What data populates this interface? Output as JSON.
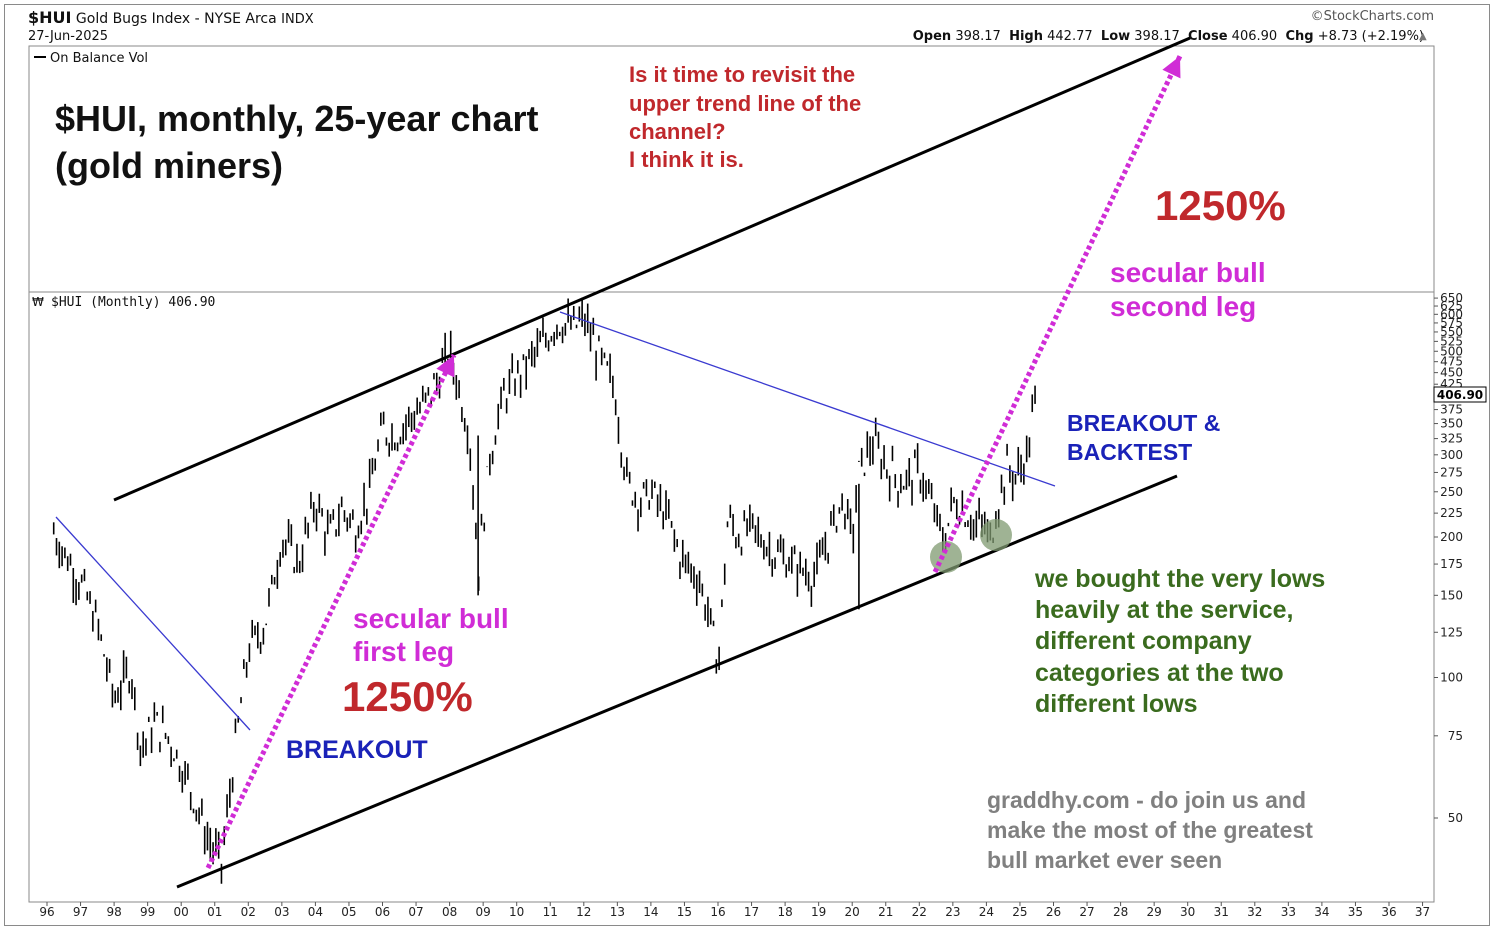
{
  "header": {
    "symbol": "$HUI",
    "name": "Gold Bugs Index - NYSE Arca",
    "exchange": "INDX",
    "date": "27-Jun-2025",
    "source": "©StockCharts.com",
    "quote": {
      "open_label": "Open",
      "open": "398.17",
      "high_label": "High",
      "high": "442.77",
      "low_label": "Low",
      "low": "398.17",
      "close_label": "Close",
      "close": "406.90",
      "chg_label": "Chg",
      "chg": "+8.73 (+2.19%)"
    }
  },
  "upper_panel": {
    "legend": "On Balance Vol"
  },
  "price_panel": {
    "legend": "$HUI (Monthly) 406.90",
    "last_price_tag": "406.90"
  },
  "annotations": {
    "title_line1": "$HUI, monthly, 25-year chart",
    "title_line2": "(gold miners)",
    "question_lines": [
      "Is it time to revisit the",
      "upper trend line of the",
      "channel?",
      "I think it is."
    ],
    "pct_top": "1250%",
    "second_leg_line1": "secular bull",
    "second_leg_line2": "second leg",
    "breakout_backtest_line1": "BREAKOUT &",
    "breakout_backtest_line2": "BACKTEST",
    "first_leg_line1": "secular bull",
    "first_leg_line2": "first leg",
    "pct_bottom": "1250%",
    "breakout": "BREAKOUT",
    "lows_lines": [
      "we bought the very lows",
      "heavily at the service,",
      "different company",
      "categories at the two",
      "different lows"
    ],
    "promo_lines": [
      "graddhy.com - do join us and",
      "make the most of the greatest",
      "bull market ever seen"
    ]
  },
  "colors": {
    "price_bars": "#000000",
    "channel_lines": "#000000",
    "downtrend_lines": "#3a3ad0",
    "magenta": "#d02cd6",
    "red_text": "#c0282c",
    "blue_text": "#1a22b8",
    "green_text": "#3a6b1e",
    "gray_text": "#808080",
    "low_circles": "#7f9a70"
  },
  "chart_data": {
    "type": "bar",
    "title": "$HUI Gold Bugs Index - NYSE Arca (Monthly)",
    "y_scale": "log",
    "y_ticks": [
      50,
      75,
      100,
      125,
      150,
      175,
      200,
      225,
      250,
      275,
      300,
      325,
      350,
      375,
      400,
      425,
      450,
      475,
      500,
      525,
      550,
      575,
      600,
      625,
      650
    ],
    "y_tick_labels": [
      "50",
      "75",
      "100",
      "125",
      "150",
      "175",
      "200",
      "225",
      "250",
      "275",
      "300",
      "325",
      "350",
      "375",
      "",
      "425",
      "450",
      "475",
      "500",
      "525",
      "550",
      "575",
      "600",
      "625",
      "650"
    ],
    "x_tick_labels": [
      "96",
      "97",
      "98",
      "99",
      "00",
      "01",
      "02",
      "03",
      "04",
      "05",
      "06",
      "07",
      "08",
      "09",
      "10",
      "11",
      "12",
      "13",
      "14",
      "15",
      "16",
      "17",
      "18",
      "19",
      "20",
      "21",
      "22",
      "23",
      "24",
      "25",
      "26",
      "27",
      "28",
      "29",
      "30",
      "31",
      "32",
      "33",
      "34",
      "35",
      "36",
      "37"
    ],
    "series": [
      {
        "name": "$HUI (Monthly)",
        "x": [
          1996.2,
          1996.6,
          1997.0,
          1997.5,
          1998.0,
          1998.5,
          1998.8,
          1999.2,
          1999.6,
          2000.0,
          2000.4,
          2000.8,
          2001.2,
          2001.6,
          2002.0,
          2002.5,
          2003.0,
          2003.5,
          2004.0,
          2004.4,
          2004.8,
          2005.2,
          2005.6,
          2006.0,
          2006.4,
          2006.8,
          2007.2,
          2007.6,
          2008.0,
          2008.3,
          2008.6,
          2008.85,
          2009.2,
          2009.6,
          2010.0,
          2010.4,
          2010.8,
          2011.2,
          2011.7,
          2012.0,
          2012.5,
          2012.9,
          2013.3,
          2013.7,
          2014.0,
          2014.5,
          2014.9,
          2015.4,
          2015.8,
          2016.0,
          2016.3,
          2016.6,
          2017.0,
          2017.5,
          2018.0,
          2018.5,
          2018.9,
          2019.3,
          2019.7,
          2020.0,
          2020.2,
          2020.6,
          2021.0,
          2021.5,
          2022.0,
          2022.4,
          2022.75,
          2023.0,
          2023.3,
          2023.7,
          2023.9,
          2024.1,
          2024.3,
          2024.6,
          2024.9,
          2025.2,
          2025.49
        ],
        "values": [
          205,
          180,
          160,
          130,
          90,
          105,
          70,
          80,
          75,
          65,
          55,
          45,
          40,
          70,
          115,
          130,
          200,
          175,
          240,
          200,
          230,
          210,
          250,
          340,
          330,
          360,
          380,
          430,
          500,
          410,
          330,
          170,
          300,
          400,
          440,
          480,
          520,
          580,
          560,
          590,
          480,
          420,
          260,
          240,
          250,
          220,
          180,
          165,
          130,
          105,
          220,
          200,
          210,
          190,
          180,
          170,
          165,
          200,
          240,
          200,
          275,
          320,
          285,
          260,
          280,
          230,
          195,
          240,
          230,
          210,
          215,
          195,
          230,
          280,
          270,
          300,
          406.9
        ]
      }
    ],
    "trend_lines": {
      "upper_channel": "rising line through the 2008 and 2011 highs",
      "lower_channel": "rising line through the 2000 low, 2016 low and 2022/2024 lows",
      "downtrend_1996_2002": "falling line from 1996 high, broken in 2002",
      "downtrend_2011_2024": "falling line from 2011 high, broken in 2024"
    }
  }
}
